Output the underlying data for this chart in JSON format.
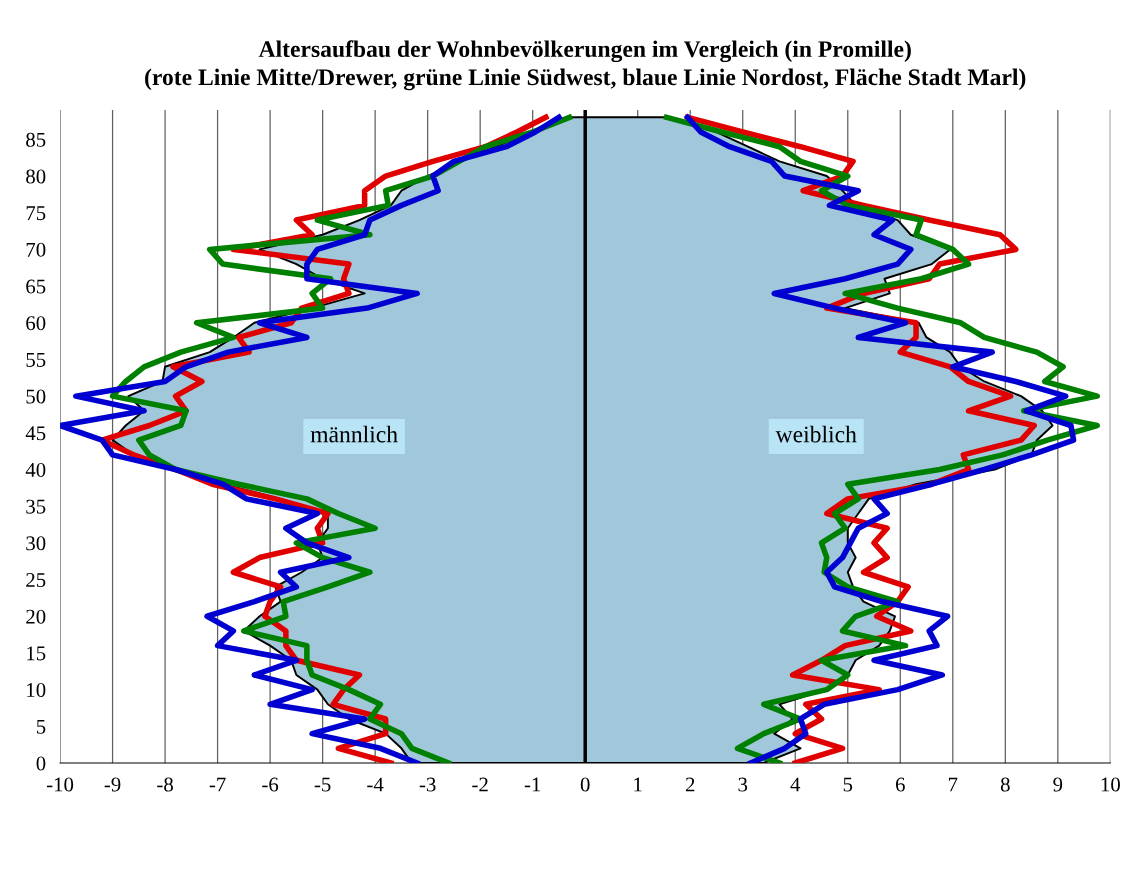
{
  "chart_data": {
    "type": "line",
    "orientation": "horizontal",
    "title": "Altersaufbau der Wohnbevölkerungen im Vergleich (in Promille)\n(rote Linie Mitte/Drewer, grüne Linie Südwest, blaue Linie Nordost, Fläche Stadt Marl)",
    "xlim": [
      -10,
      10
    ],
    "xticks": [
      -10,
      -9,
      -8,
      -7,
      -6,
      -5,
      -4,
      -3,
      -2,
      -1,
      0,
      1,
      2,
      3,
      4,
      5,
      6,
      7,
      8,
      9,
      10
    ],
    "ylim": [
      0,
      89
    ],
    "yticks": [
      0,
      5,
      10,
      15,
      20,
      25,
      30,
      35,
      40,
      45,
      50,
      55,
      60,
      65,
      70,
      75,
      80,
      85
    ],
    "grid": "x",
    "line_style": "solid",
    "marker": "none",
    "ref_lines": [
      {
        "axis": "x",
        "value": 0,
        "color": "#000000"
      }
    ],
    "annotations": [
      "männlich",
      "weiblich"
    ],
    "x": [
      0,
      2,
      4,
      6,
      8,
      10,
      12,
      14,
      16,
      18,
      20,
      22,
      24,
      26,
      28,
      30,
      32,
      34,
      36,
      38,
      40,
      42,
      44,
      46,
      48,
      50,
      52,
      54,
      56,
      58,
      60,
      62,
      64,
      66,
      68,
      70,
      72,
      74,
      76,
      78,
      80,
      82,
      84,
      86,
      88
    ],
    "series": [
      {
        "type": "area",
        "color": "#a0c8da",
        "values": [
          -3.3,
          -3.5,
          -3.8,
          -4.5,
          -4.9,
          -5.1,
          -5.5,
          -5.6,
          -6.0,
          -6.5,
          -6.2,
          -5.8,
          -5.9,
          -5.4,
          -5.0,
          -5.1,
          -4.9,
          -4.9,
          -5.8,
          -6.9,
          -7.8,
          -8.6,
          -9.0,
          -8.75,
          -8.4,
          -8.7,
          -8.05,
          -8.0,
          -7.15,
          -6.7,
          -6.3,
          -5.2,
          -4.2,
          -5.0,
          -5.5,
          -6.2,
          -5.0,
          -4.3,
          -3.7,
          -3.5,
          -3.0,
          -2.4,
          -1.7,
          -1.0,
          -0.3
        ]
      },
      {
        "type": "area",
        "color": "#a0c8da",
        "values": [
          3.4,
          4.1,
          3.6,
          3.95,
          3.7,
          4.6,
          5.0,
          5.15,
          5.6,
          5.8,
          5.9,
          5.3,
          5.1,
          5.0,
          5.15,
          5.0,
          5.0,
          5.2,
          5.4,
          6.3,
          7.8,
          8.5,
          8.6,
          8.9,
          8.7,
          8.3,
          7.6,
          7.15,
          6.95,
          6.5,
          6.35,
          4.95,
          5.8,
          5.7,
          6.6,
          6.95,
          6.2,
          5.95,
          5.15,
          4.9,
          4.6,
          3.7,
          3.1,
          2.5,
          1.5
        ]
      },
      {
        "color": "#e00000",
        "values": [
          -3.7,
          -4.7,
          -3.8,
          -3.8,
          -4.8,
          -4.6,
          -4.3,
          -5.5,
          -5.7,
          -5.7,
          -6.1,
          -6.0,
          -5.8,
          -6.7,
          -6.2,
          -5.0,
          -5.1,
          -4.9,
          -5.9,
          -7.1,
          -7.8,
          -8.6,
          -9.2,
          -8.3,
          -7.6,
          -7.8,
          -7.3,
          -7.85,
          -6.4,
          -6.6,
          -5.6,
          -5.4,
          -4.5,
          -4.6,
          -4.5,
          -6.7,
          -5.2,
          -5.5,
          -4.2,
          -4.2,
          -3.8,
          -2.9,
          -1.9,
          -1.3,
          -0.75
        ]
      },
      {
        "color": "#008000",
        "values": [
          -2.6,
          -3.3,
          -3.5,
          -4.1,
          -3.9,
          -4.5,
          -5.2,
          -5.3,
          -5.3,
          -6.5,
          -5.7,
          -5.75,
          -4.9,
          -4.1,
          -5.0,
          -5.5,
          -4.0,
          -4.7,
          -5.3,
          -6.6,
          -7.8,
          -8.3,
          -8.5,
          -7.7,
          -7.6,
          -9.0,
          -8.75,
          -8.4,
          -7.7,
          -6.7,
          -7.4,
          -5.0,
          -5.2,
          -4.85,
          -6.9,
          -7.15,
          -4.1,
          -5.1,
          -3.75,
          -3.8,
          -2.9,
          -2.4,
          -1.9,
          -1.0,
          -0.3
        ]
      },
      {
        "color": "#0000d0",
        "values": [
          -3.2,
          -3.9,
          -5.2,
          -4.2,
          -6.0,
          -5.2,
          -6.3,
          -5.5,
          -7.0,
          -6.7,
          -7.2,
          -6.3,
          -5.5,
          -5.8,
          -4.5,
          -5.3,
          -5.7,
          -5.1,
          -6.45,
          -6.9,
          -7.8,
          -9.0,
          -9.2,
          -10.0,
          -8.4,
          -9.7,
          -8.0,
          -7.6,
          -6.8,
          -5.3,
          -6.2,
          -4.15,
          -3.2,
          -5.3,
          -5.3,
          -5.1,
          -4.2,
          -4.1,
          -3.5,
          -2.8,
          -2.9,
          -2.5,
          -1.5,
          -0.95,
          -0.5
        ]
      },
      {
        "color": "#e00000",
        "values": [
          4.0,
          4.9,
          4.0,
          4.5,
          4.2,
          5.6,
          3.95,
          4.5,
          4.95,
          6.2,
          5.55,
          5.95,
          6.15,
          5.3,
          5.75,
          5.5,
          5.75,
          4.6,
          5.0,
          6.6,
          7.3,
          7.2,
          8.3,
          8.55,
          7.3,
          8.1,
          7.3,
          6.95,
          6.0,
          6.3,
          6.3,
          4.6,
          5.3,
          6.55,
          6.75,
          8.2,
          7.9,
          6.55,
          5.3,
          4.15,
          4.9,
          5.1,
          4.1,
          3.0,
          1.95
        ]
      },
      {
        "color": "#008000",
        "values": [
          3.7,
          2.9,
          3.4,
          4.1,
          3.4,
          4.6,
          5.0,
          4.5,
          6.1,
          4.9,
          5.15,
          5.95,
          5.0,
          4.55,
          4.6,
          4.5,
          4.95,
          4.75,
          5.2,
          5.0,
          6.75,
          7.95,
          8.8,
          9.75,
          8.35,
          9.75,
          8.75,
          9.1,
          8.6,
          7.6,
          7.15,
          5.95,
          4.95,
          6.4,
          7.3,
          7.0,
          6.3,
          6.4,
          5.0,
          4.5,
          5.0,
          4.1,
          3.7,
          2.6,
          1.55
        ]
      },
      {
        "color": "#0000d0",
        "values": [
          3.15,
          3.8,
          4.2,
          4.1,
          4.55,
          5.95,
          6.8,
          5.5,
          6.7,
          6.55,
          6.9,
          5.65,
          4.75,
          4.6,
          4.9,
          5.05,
          5.2,
          5.75,
          5.5,
          6.6,
          7.6,
          8.5,
          9.3,
          9.25,
          8.4,
          9.15,
          8.2,
          7.0,
          7.75,
          5.2,
          6.1,
          4.75,
          3.6,
          4.95,
          5.95,
          6.2,
          5.5,
          5.85,
          4.65,
          5.2,
          3.8,
          3.55,
          2.75,
          2.2,
          1.95
        ]
      }
    ]
  }
}
